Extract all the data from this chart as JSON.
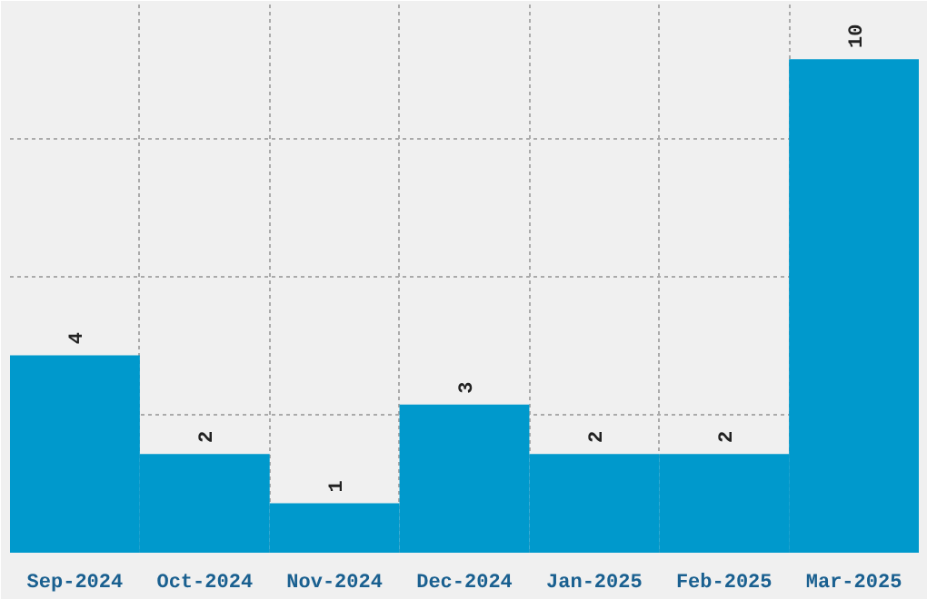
{
  "chart_data": {
    "type": "bar",
    "categories": [
      "Sep-2024",
      "Oct-2024",
      "Nov-2024",
      "Dec-2024",
      "Jan-2025",
      "Feb-2025",
      "Mar-2025"
    ],
    "values": [
      4,
      2,
      1,
      3,
      2,
      2,
      10
    ],
    "color": "#0099cc",
    "data_labels": true,
    "grid": true
  }
}
